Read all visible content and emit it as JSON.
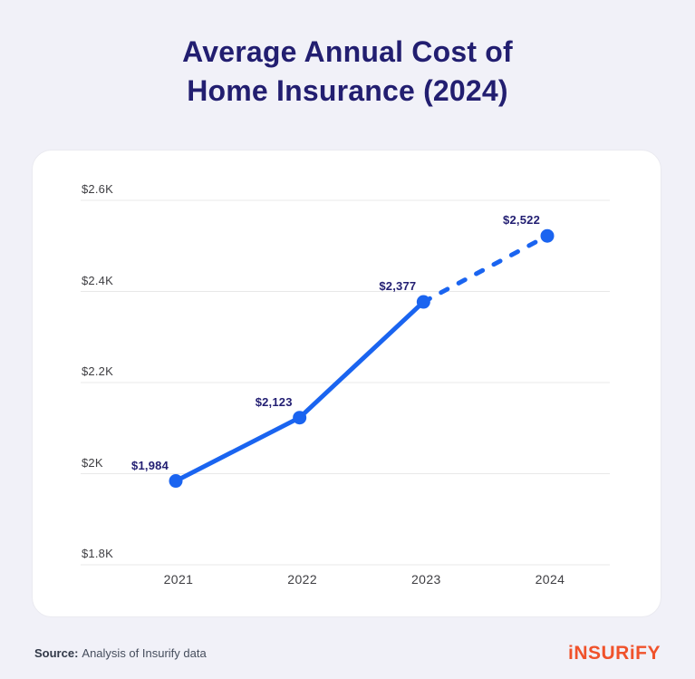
{
  "colors": {
    "background": "#f1f1f8",
    "card": "#ffffff",
    "title": "#221e70",
    "footer_text": "#323948",
    "logo": "#f0522b"
  },
  "header": {
    "title": "Average Annual Cost of\nHome Insurance (2024)"
  },
  "chart_data": {
    "type": "line",
    "title": "Average Annual Cost of Home Insurance (2024)",
    "x": [
      "2021",
      "2022",
      "2023",
      "2024"
    ],
    "series": [
      {
        "name": "Average annual cost of home insurance",
        "values": [
          1984,
          2123,
          2377,
          2522
        ],
        "point_labels": [
          "$1,984",
          "$2,123",
          "$2,377",
          "$2,522"
        ]
      }
    ],
    "ylim": [
      1800,
      2600
    ],
    "y_ticks": [
      {
        "value": 1800,
        "label": "$1.8K"
      },
      {
        "value": 2000,
        "label": "$2K"
      },
      {
        "value": 2200,
        "label": "$2.2K"
      },
      {
        "value": 2400,
        "label": "$2.4K"
      },
      {
        "value": 2600,
        "label": "$2.6K"
      }
    ],
    "grid": "horizontal",
    "legend": "none",
    "dashed_segment_from_index": 2,
    "dashed_segment_note": "Segment from 2023 to 2024 is drawn dashed (projected value)",
    "colors": {
      "line": "#1a64f0",
      "point": "#1a64f0",
      "data_label": "#221e72",
      "tick_label": "#3e3e42",
      "gridline": "#e8e8e8"
    }
  },
  "footer": {
    "source_label": "Source:",
    "source_text": "Analysis of Insurify data",
    "logo_text": "iNSURiFY"
  }
}
